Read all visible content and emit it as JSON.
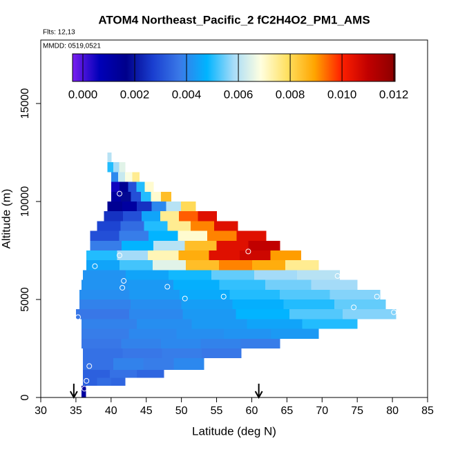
{
  "chart_data": {
    "type": "heatmap",
    "title": "ATOM4 Northeast_Pacific_2 fC2H4O2_PM1_AMS",
    "annotations": [
      "Flts: 12,13",
      "MMDD: 0519,0521"
    ],
    "x_label": "Latitude (deg N)",
    "y_label": "Altitude (m)",
    "xlim": [
      30,
      85
    ],
    "ylim": [
      0,
      18240
    ],
    "xticks": [
      30,
      35,
      40,
      45,
      50,
      55,
      60,
      65,
      70,
      75,
      80,
      85
    ],
    "yticks": [
      0,
      5000,
      10000,
      15000
    ],
    "colorbar": {
      "lim": [
        -0.0004,
        0.01205
      ],
      "ticks": [
        {
          "value": 0,
          "label": "0.000"
        },
        0.002,
        0.004,
        0.006,
        0.008,
        {
          "value": 0.01,
          "label": "0.010"
        },
        0.012
      ],
      "colors": [
        "#7a1ff0",
        "#0000b8",
        "#00008b",
        "#1a3fd0",
        "#3a7ae8",
        "#00b4ff",
        "#a8dcf8",
        "#ffffe0",
        "#ffe060",
        "#ffa500",
        "#ff2000",
        "#c00000",
        "#8b0000"
      ]
    },
    "rows": [
      {
        "y0": 0,
        "y1": 600,
        "x0": 35.8,
        "x1": 36.4,
        "values": [
          0.0012
        ]
      },
      {
        "y0": 600,
        "y1": 1000,
        "x0": 36,
        "x1": 42,
        "values": [
          0.0033,
          0.0035,
          0.0034
        ]
      },
      {
        "y0": 1000,
        "y1": 1400,
        "x0": 36,
        "x1": 47.5,
        "values": [
          0.0033,
          0.0036,
          0.0034
        ]
      },
      {
        "y0": 1400,
        "y1": 2000,
        "x0": 36,
        "x1": 53.2,
        "values": [
          0.0036,
          0.0039,
          0.0038,
          0.004
        ]
      },
      {
        "y0": 2000,
        "y1": 2500,
        "x0": 36,
        "x1": 58.5,
        "values": [
          0.0036,
          0.0037,
          0.0038,
          0.0037
        ]
      },
      {
        "y0": 2500,
        "y1": 3000,
        "x0": 35.8,
        "x1": 64,
        "values": [
          0.0037,
          0.0039,
          0.004,
          0.0039,
          0.0038
        ]
      },
      {
        "y0": 3000,
        "y1": 3500,
        "x0": 35.8,
        "x1": 69.5,
        "values": [
          0.0038,
          0.004,
          0.0041,
          0.0042,
          0.0043
        ]
      },
      {
        "y0": 3500,
        "y1": 4000,
        "x0": 35.8,
        "x1": 75,
        "values": [
          0.0039,
          0.0041,
          0.0043,
          0.0045,
          0.005
        ]
      },
      {
        "y0": 4000,
        "y1": 4500,
        "x0": 35,
        "x1": 80.5,
        "values": [
          0.0037,
          0.004,
          0.0043,
          0.0048,
          0.0053,
          0.0056
        ]
      },
      {
        "y0": 4500,
        "y1": 5000,
        "x0": 35.5,
        "x1": 79,
        "values": [
          0.0039,
          0.0041,
          0.0044,
          0.0047,
          0.005,
          0.0054
        ]
      },
      {
        "y0": 5000,
        "y1": 5500,
        "x0": 35.5,
        "x1": 78.2,
        "values": [
          0.0041,
          0.0043,
          0.0046,
          0.005,
          0.0053,
          0.0056
        ]
      },
      {
        "y0": 5500,
        "y1": 6000,
        "x0": 35.8,
        "x1": 75,
        "values": [
          0.0042,
          0.0043,
          0.0047,
          0.0051,
          0.0055,
          0.0058
        ]
      },
      {
        "y0": 6000,
        "y1": 6500,
        "x0": 36,
        "x1": 72.5,
        "values": [
          0.0042,
          0.0045,
          0.0049,
          0.0054,
          0.0058,
          0.006
        ]
      },
      {
        "y0": 6500,
        "y1": 7000,
        "x0": 36.5,
        "x1": 69.5,
        "values": [
          0.0045,
          0.0052,
          0.0065,
          0.0085,
          0.0092,
          0.0088,
          0.0075
        ]
      },
      {
        "y0": 7000,
        "y1": 7500,
        "x0": 36.5,
        "x1": 67,
        "values": [
          0.005,
          0.0058,
          0.0072,
          0.0088,
          0.0105,
          0.0108,
          0.009
        ]
      },
      {
        "y0": 7500,
        "y1": 8000,
        "x0": 37,
        "x1": 64,
        "values": [
          0.0038,
          0.0048,
          0.006,
          0.0085,
          0.0105,
          0.011
        ]
      },
      {
        "y0": 8000,
        "y1": 8500,
        "x0": 37,
        "x1": 62,
        "values": [
          0.003,
          0.0038,
          0.0048,
          0.007,
          0.0092,
          0.0105
        ]
      },
      {
        "y0": 8500,
        "y1": 9000,
        "x0": 38,
        "x1": 58,
        "values": [
          0.0028,
          0.0035,
          0.005,
          0.0075,
          0.0092,
          0.0105
        ]
      },
      {
        "y0": 9000,
        "y1": 9500,
        "x0": 39,
        "x1": 55,
        "values": [
          0.0025,
          0.003,
          0.0045,
          0.0075,
          0.0095,
          0.0105
        ]
      },
      {
        "y0": 9500,
        "y1": 10000,
        "x0": 39.5,
        "x1": 52,
        "values": [
          0.0015,
          0.0012,
          0.0025,
          0.004,
          0.006,
          0.008
        ]
      },
      {
        "y0": 10000,
        "y1": 10500,
        "x0": 40,
        "x1": 48.5,
        "values": [
          0.0012,
          0.0018,
          0.003,
          0.005,
          0.007,
          0.0085
        ]
      },
      {
        "y0": 10500,
        "y1": 11000,
        "x0": 40,
        "x1": 46,
        "values": [
          0.0005,
          0.0015,
          0.003,
          0.005,
          0.007
        ]
      },
      {
        "y0": 11000,
        "y1": 11500,
        "x0": 40,
        "x1": 44,
        "values": [
          0.004,
          0.0062,
          0.0068,
          0.0075
        ]
      },
      {
        "y0": 11500,
        "y1": 12000,
        "x0": 39.5,
        "x1": 42,
        "values": [
          0.005,
          0.0058,
          0.0065
        ]
      },
      {
        "y0": 12000,
        "y1": 12500,
        "x0": 39.5,
        "x1": 40,
        "values": [
          0.006
        ]
      }
    ],
    "points": {
      "x": [
        41.2,
        41.2,
        37.7,
        41.8,
        41.6,
        48,
        50.5,
        56,
        59.5,
        72.2,
        74.5,
        77.8,
        80.2,
        35.3,
        36.9,
        36.5,
        36.2
      ],
      "y": [
        10400,
        7250,
        6700,
        5950,
        5600,
        5650,
        5050,
        5150,
        7450,
        6200,
        4600,
        5150,
        4350,
        4100,
        1600,
        850,
        450
      ]
    },
    "arrows": [
      34.7,
      61
    ]
  }
}
